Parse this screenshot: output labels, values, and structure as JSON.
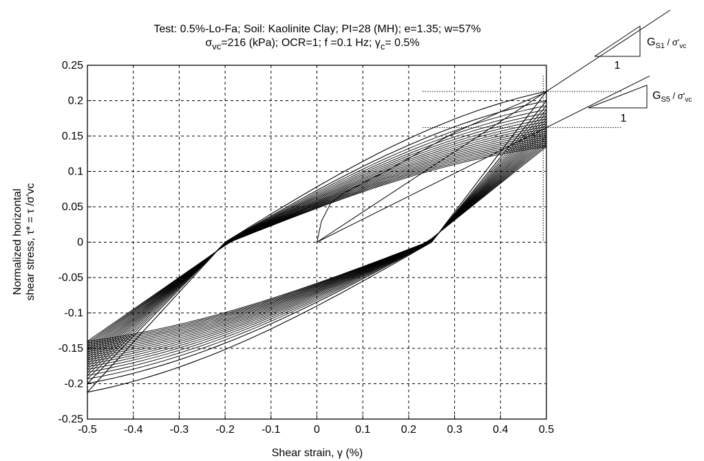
{
  "chart_data": {
    "type": "line",
    "title_line1": "Test: 0.5%-Lo-Fa;  Soil: Kaolinite Clay;  PI=28 (MH);    e=1.35;    w=57%",
    "title_line2": {
      "sigma": "σ",
      "sigma_sub": "vc",
      "part_a": "=216 (kPa);    OCR=1;    f =0.1  Hz;  ",
      "gamma": "γ",
      "gamma_sub": "c",
      "part_b": "= 0.5%"
    },
    "xlabel": "Shear strain, γ (%)",
    "ylabel_line1": "Normalized horizontal",
    "ylabel_line2": "shear stress, τ* = τ /σ'vc",
    "xlim": [
      -0.5,
      0.5
    ],
    "ylim": [
      -0.25,
      0.25
    ],
    "x_ticks": [
      "-0.5",
      "-0.4",
      "-0.3",
      "-0.2",
      "-0.1",
      "0",
      "0.1",
      "0.2",
      "0.3",
      "0.4",
      "0.5"
    ],
    "y_ticks": [
      "0.25",
      "0.2",
      "0.15",
      "0.1",
      "0.05",
      "0",
      "-0.05",
      "-0.1",
      "-0.15",
      "-0.2",
      "-0.25"
    ],
    "grid": true,
    "loops": {
      "count": 20,
      "first_cycle": {
        "peak_tau": 0.213,
        "min_tau": -0.212,
        "x_zero_cross_up": -0.2,
        "x_zero_cross_down": 0.25
      },
      "last_cycle": {
        "peak_tau": 0.135,
        "min_tau": -0.14
      }
    },
    "initial_loading": [
      [
        0,
        0
      ],
      [
        0.01,
        0.03
      ],
      [
        0.03,
        0.055
      ],
      [
        0.06,
        0.07
      ],
      [
        0.15,
        0.1
      ],
      [
        0.3,
        0.155
      ],
      [
        0.42,
        0.19
      ],
      [
        0.5,
        0.212
      ]
    ],
    "reference_lines": [
      {
        "name": "G_S1",
        "points": [
          [
            0,
            0
          ],
          [
            0.5,
            0.213
          ]
        ]
      },
      {
        "name": "G_S5",
        "points": [
          [
            0,
            0
          ],
          [
            0.5,
            0.162
          ]
        ]
      }
    ],
    "dotted_levels": [
      0.213,
      0.162
    ],
    "slope_annotations": [
      {
        "label_main": "G",
        "label_sub": "S1",
        "label_rest": " / σ'",
        "label_rest_sub": "vc",
        "run_label": "1"
      },
      {
        "label_main": "G",
        "label_sub": "S5",
        "label_rest": " / σ'",
        "label_rest_sub": "vc",
        "run_label": "1"
      }
    ]
  }
}
